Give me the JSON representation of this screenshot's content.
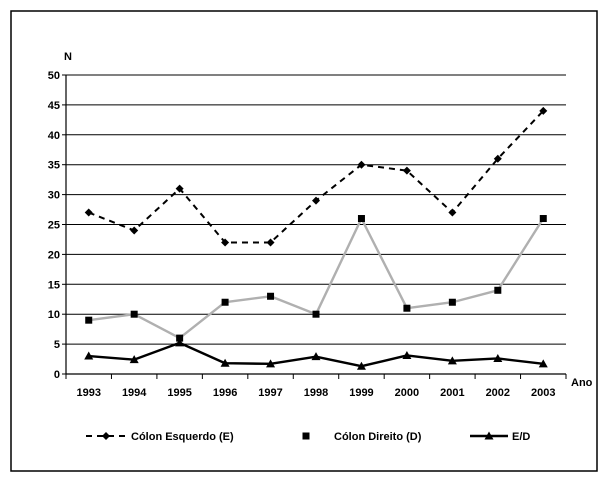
{
  "chart_data": {
    "type": "line",
    "ylabel": "N",
    "xlabel": "Ano",
    "categories": [
      "1993",
      "1994",
      "1995",
      "1996",
      "1997",
      "1998",
      "1999",
      "2000",
      "2001",
      "2002",
      "2003"
    ],
    "yticks": [
      "0",
      "5",
      "10",
      "15",
      "20",
      "25",
      "30",
      "35",
      "40",
      "45",
      "50"
    ],
    "ylim": [
      0,
      50
    ],
    "grid": true,
    "legend_placement": "bottom",
    "series": [
      {
        "name": "Cólon Esquerdo (E)",
        "values": [
          27,
          24,
          31,
          22,
          22,
          29,
          35,
          34,
          27,
          36,
          44
        ],
        "color": "#000000",
        "line_style": "dashed",
        "marker": "diamond"
      },
      {
        "name": "Cólon Direito (D)",
        "values": [
          9,
          10,
          6,
          12,
          13,
          10,
          26,
          11,
          12,
          14,
          26
        ],
        "color": "#b0b0b0",
        "marker_color": "#000000",
        "line_style": "solid",
        "marker": "square"
      },
      {
        "name": "E/D",
        "values": [
          3.0,
          2.4,
          5.2,
          1.8,
          1.7,
          2.9,
          1.3,
          3.1,
          2.2,
          2.6,
          1.7
        ],
        "color": "#000000",
        "line_style": "solid",
        "marker": "triangle"
      }
    ]
  }
}
